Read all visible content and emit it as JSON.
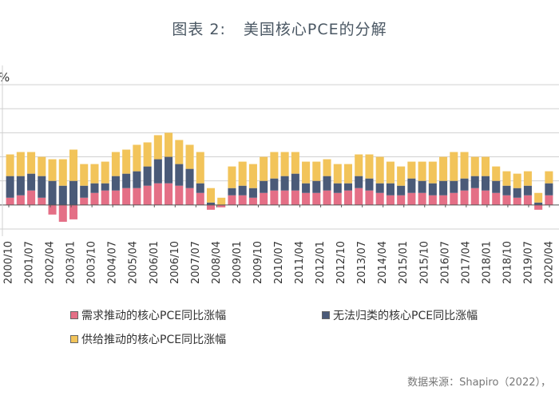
{
  "title": {
    "label": "图表 2:",
    "text": "美国核心PCE的分解"
  },
  "source": "数据来源：Shapiro（2022），",
  "colors": {
    "demand": "#e46f86",
    "unclassified": "#4a5a78",
    "supply": "#f2c45a",
    "axis": "#555555",
    "grid": "#d0d0d0"
  },
  "chart_data": {
    "type": "bar",
    "stacked": true,
    "ylabel": "%",
    "ylim": [
      -1.3,
      5.8
    ],
    "grid": true,
    "legend_position": "bottom",
    "x_ticks": [
      "2000/10",
      "2001/07",
      "2002/04",
      "2003/01",
      "2003/10",
      "2004/07",
      "2005/04",
      "2006/01",
      "2006/10",
      "2007/07",
      "2008/04",
      "2009/01",
      "2009/10",
      "2010/07",
      "2011/04",
      "2012/01",
      "2012/10",
      "2013/07",
      "2014/04",
      "2015/01",
      "2015/10",
      "2016/07",
      "2017/04",
      "2018/01",
      "2018/10",
      "2019/07",
      "2020/04"
    ],
    "series": [
      {
        "name": "需求推动的核心PCE同比涨幅",
        "values": [
          0.3,
          0.4,
          0.6,
          0.3,
          -0.4,
          -0.7,
          -0.6,
          0.3,
          0.5,
          0.6,
          0.6,
          0.7,
          0.7,
          0.8,
          0.9,
          0.9,
          0.8,
          0.7,
          0.5,
          -0.2,
          -0.1,
          0.4,
          0.4,
          0.3,
          0.5,
          0.6,
          0.6,
          0.6,
          0.5,
          0.5,
          0.6,
          0.5,
          0.6,
          0.7,
          0.6,
          0.5,
          0.4,
          0.4,
          0.5,
          0.5,
          0.4,
          0.4,
          0.5,
          0.6,
          0.7,
          0.6,
          0.5,
          0.4,
          0.3,
          0.4,
          -0.2,
          0.4
        ]
      },
      {
        "name": "无法归类的核心PCE同比涨幅",
        "values": [
          0.9,
          0.8,
          0.7,
          0.9,
          1.0,
          0.8,
          1.0,
          0.5,
          0.4,
          0.3,
          0.6,
          0.6,
          0.7,
          0.8,
          1.0,
          1.1,
          0.9,
          0.8,
          0.4,
          0.1,
          0.0,
          0.3,
          0.4,
          0.4,
          0.5,
          0.5,
          0.6,
          0.7,
          0.4,
          0.5,
          0.6,
          0.4,
          0.3,
          0.5,
          0.5,
          0.4,
          0.5,
          0.4,
          0.6,
          0.5,
          0.5,
          0.6,
          0.5,
          0.5,
          0.5,
          0.6,
          0.5,
          0.4,
          0.4,
          0.4,
          0.1,
          0.5
        ]
      },
      {
        "name": "供给推动的核心PCE同比涨幅",
        "values": [
          0.9,
          1.0,
          0.9,
          0.8,
          0.9,
          1.1,
          1.3,
          0.9,
          0.8,
          0.9,
          1.0,
          1.0,
          1.1,
          1.0,
          1.0,
          1.0,
          1.0,
          1.0,
          1.3,
          0.6,
          0.3,
          0.9,
          1.0,
          1.0,
          1.0,
          1.1,
          1.0,
          0.9,
          0.9,
          0.8,
          0.7,
          0.8,
          0.8,
          0.9,
          1.0,
          1.1,
          0.9,
          0.8,
          0.7,
          0.8,
          0.9,
          1.0,
          1.2,
          1.1,
          0.8,
          0.8,
          0.6,
          0.6,
          0.6,
          0.6,
          0.4,
          0.5
        ]
      }
    ]
  },
  "legend": [
    {
      "label": "需求推动的核心PCE同比涨幅"
    },
    {
      "label": "无法归类的核心PCE同比涨幅"
    },
    {
      "label": "供给推动的核心PCE同比涨幅"
    }
  ]
}
